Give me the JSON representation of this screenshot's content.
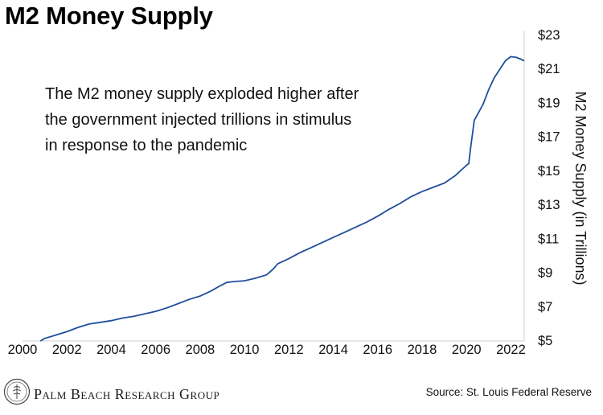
{
  "header": {
    "title": "M2 Money Supply"
  },
  "chart_data": {
    "type": "line",
    "title": "M2 Money Supply",
    "xlabel": "",
    "ylabel": "M2 Money Supply (in Trillions)",
    "xlim": [
      2000,
      2022.6
    ],
    "ylim": [
      5,
      23
    ],
    "x_ticks": [
      "2000",
      "2002",
      "2004",
      "2006",
      "2008",
      "2010",
      "2012",
      "2014",
      "2016",
      "2018",
      "2020",
      "2022"
    ],
    "y_ticks": [
      "$5",
      "$7",
      "$9",
      "$11",
      "$13",
      "$15",
      "$17",
      "$19",
      "$21",
      "$23"
    ],
    "grid": false,
    "legend": "none",
    "annotation": [
      "The M2 money supply exploded higher after",
      "the government injected trillions in stimulus",
      "in response to the pandemic"
    ],
    "series": [
      {
        "color": "#1f4e9c",
        "x": [
          2000.8,
          2001.0,
          2001.5,
          2002.0,
          2002.5,
          2003.0,
          2003.5,
          2004.0,
          2004.5,
          2005.0,
          2005.5,
          2006.0,
          2006.5,
          2007.0,
          2007.5,
          2008.0,
          2008.5,
          2008.9,
          2009.2,
          2009.5,
          2010.0,
          2010.5,
          2011.0,
          2011.3,
          2011.5,
          2012.0,
          2012.5,
          2013.0,
          2013.5,
          2014.0,
          2014.5,
          2015.0,
          2015.5,
          2016.0,
          2016.5,
          2017.0,
          2017.5,
          2018.0,
          2018.5,
          2019.0,
          2019.5,
          2020.0,
          2020.1,
          2020.2,
          2020.35,
          2020.5,
          2020.75,
          2021.0,
          2021.25,
          2021.5,
          2021.75,
          2022.0,
          2022.25,
          2022.45,
          2022.6
        ],
        "y": [
          5.0,
          5.15,
          5.35,
          5.55,
          5.8,
          6.0,
          6.1,
          6.2,
          6.35,
          6.45,
          6.6,
          6.75,
          6.95,
          7.2,
          7.45,
          7.65,
          7.95,
          8.25,
          8.45,
          8.5,
          8.55,
          8.7,
          8.9,
          9.25,
          9.55,
          9.85,
          10.2,
          10.5,
          10.8,
          11.1,
          11.4,
          11.7,
          12.0,
          12.35,
          12.75,
          13.1,
          13.5,
          13.8,
          14.05,
          14.3,
          14.75,
          15.35,
          15.45,
          16.5,
          18.0,
          18.35,
          18.95,
          19.8,
          20.5,
          21.0,
          21.5,
          21.75,
          21.7,
          21.6,
          21.5
        ]
      }
    ]
  },
  "footer": {
    "brand": "Palm Beach Research Group",
    "source": "Source: St. Louis Federal Reserve",
    "seal_icon": "seal-icon"
  }
}
